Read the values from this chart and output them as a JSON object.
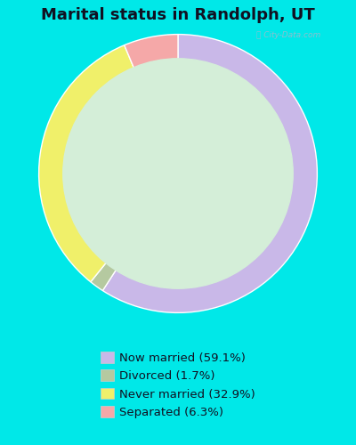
{
  "title": "Marital status in Randolph, UT",
  "title_fontsize": 13,
  "title_fontweight": "bold",
  "slices": [
    {
      "label": "Now married (59.1%)",
      "value": 59.1,
      "color": "#c9b8e8"
    },
    {
      "label": "Divorced (1.7%)",
      "value": 1.7,
      "color": "#b5c9a0"
    },
    {
      "label": "Never married (32.9%)",
      "value": 32.9,
      "color": "#f0f06a"
    },
    {
      "label": "Separated (6.3%)",
      "value": 6.3,
      "color": "#f5a8a8"
    }
  ],
  "bg_outer": "#00e8e8",
  "bg_chart": "#d4eed8",
  "legend_bg": "#00e8e8",
  "donut_width": 0.38,
  "startangle": 90,
  "watermark": "City-Data.com"
}
